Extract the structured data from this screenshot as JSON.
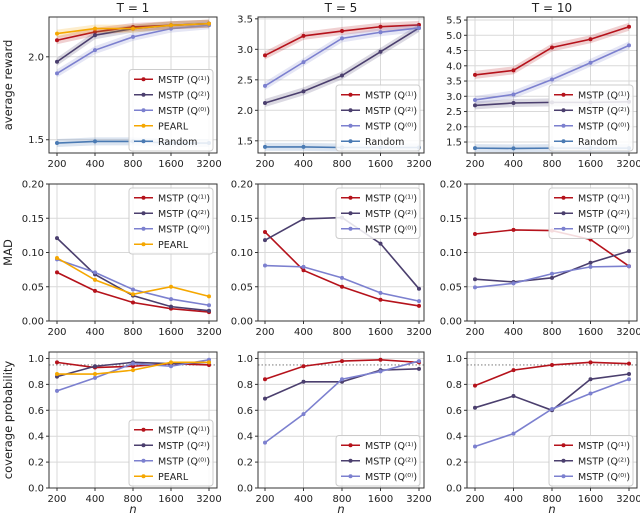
{
  "chart_data": [
    {
      "type": "line",
      "title": "T = 1",
      "ylabel": "average reward",
      "xlabel": "",
      "categories": [
        "200",
        "400",
        "800",
        "1600",
        "3200"
      ],
      "ylim": [
        1.42,
        2.24
      ],
      "yticks": [
        1.5,
        2.0
      ],
      "ytick_labels": [
        "1.5",
        "2.0"
      ],
      "grid": true,
      "legend": "lower right",
      "confidence_band": true,
      "series": [
        {
          "name": "MSTP (Q⁽¹⁾)",
          "color": "#b5121b",
          "values": [
            2.1,
            2.15,
            2.18,
            2.19,
            2.2
          ]
        },
        {
          "name": "MSTP (Q⁽²⁾)",
          "color": "#4b3f6e",
          "values": [
            1.97,
            2.13,
            2.17,
            2.19,
            2.2
          ]
        },
        {
          "name": "MSTP (Q⁽⁰⁾)",
          "color": "#7c80cf",
          "values": [
            1.9,
            2.04,
            2.12,
            2.17,
            2.19
          ]
        },
        {
          "name": "PEARL",
          "color": "#f5a700",
          "values": [
            2.14,
            2.17,
            2.17,
            2.19,
            2.2
          ]
        },
        {
          "name": "Random",
          "color": "#4a7ab3",
          "values": [
            1.48,
            1.49,
            1.49,
            1.48,
            1.48
          ]
        }
      ]
    },
    {
      "type": "line",
      "title": "T = 5",
      "ylabel": "",
      "xlabel": "",
      "categories": [
        "200",
        "400",
        "800",
        "1600",
        "3200"
      ],
      "ylim": [
        1.3,
        3.53
      ],
      "yticks": [
        1.5,
        2.0,
        2.5,
        3.0,
        3.5
      ],
      "ytick_labels": [
        "1.5",
        "2.0",
        "2.5",
        "3.0",
        "3.5"
      ],
      "grid": true,
      "legend": "lower right",
      "confidence_band": true,
      "series": [
        {
          "name": "MSTP (Q⁽¹⁾)",
          "color": "#b5121b",
          "values": [
            2.9,
            3.22,
            3.3,
            3.37,
            3.4
          ]
        },
        {
          "name": "MSTP (Q⁽²⁾)",
          "color": "#4b3f6e",
          "values": [
            2.12,
            2.31,
            2.57,
            2.96,
            3.35
          ]
        },
        {
          "name": "MSTP (Q⁽⁰⁾)",
          "color": "#7c80cf",
          "values": [
            2.4,
            2.79,
            3.18,
            3.28,
            3.35
          ]
        },
        {
          "name": "Random",
          "color": "#4a7ab3",
          "values": [
            1.4,
            1.4,
            1.39,
            1.39,
            1.39
          ]
        }
      ]
    },
    {
      "type": "line",
      "title": "T = 10",
      "ylabel": "",
      "xlabel": "",
      "categories": [
        "200",
        "400",
        "800",
        "1600",
        "3200"
      ],
      "ylim": [
        1.14,
        5.6
      ],
      "yticks": [
        1.5,
        2.0,
        2.5,
        3.0,
        3.5,
        4.0,
        4.5,
        5.0,
        5.5
      ],
      "ytick_labels": [
        "1.5",
        "2.0",
        "2.5",
        "3.0",
        "3.5",
        "4.0",
        "4.5",
        "5.0",
        "5.5"
      ],
      "grid": true,
      "legend": "lower right",
      "confidence_band": true,
      "series": [
        {
          "name": "MSTP (Q⁽¹⁾)",
          "color": "#b5121b",
          "values": [
            3.7,
            3.85,
            4.6,
            4.87,
            5.28
          ]
        },
        {
          "name": "MSTP (Q⁽²⁾)",
          "color": "#4b3f6e",
          "values": [
            2.7,
            2.78,
            2.8,
            2.8,
            2.82
          ]
        },
        {
          "name": "MSTP (Q⁽⁰⁾)",
          "color": "#7c80cf",
          "values": [
            2.88,
            3.06,
            3.55,
            4.1,
            4.67
          ]
        },
        {
          "name": "Random",
          "color": "#4a7ab3",
          "values": [
            1.3,
            1.29,
            1.3,
            1.3,
            1.3
          ]
        }
      ]
    },
    {
      "type": "line",
      "title": "",
      "ylabel": "MAD",
      "xlabel": "",
      "categories": [
        "200",
        "400",
        "800",
        "1600",
        "3200"
      ],
      "ylim": [
        0,
        0.2
      ],
      "yticks": [
        0,
        0.05,
        0.1,
        0.15,
        0.2
      ],
      "ytick_labels": [
        "0.00",
        "0.05",
        "0.10",
        "0.15",
        "0.20"
      ],
      "grid": true,
      "legend": "upper right",
      "series": [
        {
          "name": "MSTP (Q⁽¹⁾)",
          "color": "#b5121b",
          "values": [
            0.071,
            0.044,
            0.027,
            0.018,
            0.013
          ]
        },
        {
          "name": "MSTP (Q⁽²⁾)",
          "color": "#4b3f6e",
          "values": [
            0.121,
            0.068,
            0.037,
            0.021,
            0.015
          ]
        },
        {
          "name": "MSTP (Q⁽⁰⁾)",
          "color": "#7c80cf",
          "values": [
            0.09,
            0.071,
            0.046,
            0.032,
            0.023
          ]
        },
        {
          "name": "PEARL",
          "color": "#f5a700",
          "values": [
            0.092,
            0.06,
            0.039,
            0.05,
            0.036
          ]
        }
      ]
    },
    {
      "type": "line",
      "title": "",
      "ylabel": "",
      "xlabel": "",
      "categories": [
        "200",
        "400",
        "800",
        "1600",
        "3200"
      ],
      "ylim": [
        0,
        0.2
      ],
      "yticks": [
        0,
        0.05,
        0.1,
        0.15,
        0.2
      ],
      "ytick_labels": [
        "0.00",
        "0.05",
        "0.10",
        "0.15",
        "0.20"
      ],
      "grid": true,
      "legend": "upper right",
      "series": [
        {
          "name": "MSTP (Q⁽¹⁾)",
          "color": "#b5121b",
          "values": [
            0.13,
            0.074,
            0.05,
            0.031,
            0.022
          ]
        },
        {
          "name": "MSTP (Q⁽²⁾)",
          "color": "#4b3f6e",
          "values": [
            0.118,
            0.149,
            0.151,
            0.113,
            0.047
          ]
        },
        {
          "name": "MSTP (Q⁽⁰⁾)",
          "color": "#7c80cf",
          "values": [
            0.081,
            0.079,
            0.063,
            0.041,
            0.029
          ]
        }
      ]
    },
    {
      "type": "line",
      "title": "",
      "ylabel": "",
      "xlabel": "",
      "categories": [
        "200",
        "400",
        "800",
        "1600",
        "3200"
      ],
      "ylim": [
        0,
        0.2
      ],
      "yticks": [
        0,
        0.05,
        0.1,
        0.15,
        0.2
      ],
      "ytick_labels": [
        "0.00",
        "0.05",
        "0.10",
        "0.15",
        "0.20"
      ],
      "grid": true,
      "legend": "upper right",
      "series": [
        {
          "name": "MSTP (Q⁽¹⁾)",
          "color": "#b5121b",
          "values": [
            0.127,
            0.133,
            0.132,
            0.119,
            0.08
          ]
        },
        {
          "name": "MSTP (Q⁽²⁾)",
          "color": "#4b3f6e",
          "values": [
            0.061,
            0.057,
            0.063,
            0.085,
            0.102
          ]
        },
        {
          "name": "MSTP (Q⁽⁰⁾)",
          "color": "#7c80cf",
          "values": [
            0.049,
            0.055,
            0.069,
            0.079,
            0.08
          ]
        }
      ]
    },
    {
      "type": "line",
      "title": "",
      "ylabel": "coverage probability",
      "xlabel": "n",
      "categories": [
        "200",
        "400",
        "800",
        "1600",
        "3200"
      ],
      "ylim": [
        0,
        1.05
      ],
      "yticks": [
        0,
        0.2,
        0.4,
        0.6,
        0.8,
        1.0
      ],
      "ytick_labels": [
        "0.0",
        "0.2",
        "0.4",
        "0.6",
        "0.8",
        "1.0"
      ],
      "grid": true,
      "legend": "lower right",
      "reference_line": 0.95,
      "series": [
        {
          "name": "MSTP (Q⁽¹⁾)",
          "color": "#b5121b",
          "values": [
            0.97,
            0.93,
            0.94,
            0.96,
            0.95
          ]
        },
        {
          "name": "MSTP (Q⁽²⁾)",
          "color": "#4b3f6e",
          "values": [
            0.86,
            0.94,
            0.97,
            0.96,
            0.97
          ]
        },
        {
          "name": "MSTP (Q⁽⁰⁾)",
          "color": "#7c80cf",
          "values": [
            0.75,
            0.85,
            0.96,
            0.94,
            0.99
          ]
        },
        {
          "name": "PEARL",
          "color": "#f5a700",
          "values": [
            0.88,
            0.88,
            0.91,
            0.97,
            0.97
          ]
        }
      ]
    },
    {
      "type": "line",
      "title": "",
      "ylabel": "",
      "xlabel": "n",
      "categories": [
        "200",
        "400",
        "800",
        "1600",
        "3200"
      ],
      "ylim": [
        0,
        1.05
      ],
      "yticks": [
        0,
        0.2,
        0.4,
        0.6,
        0.8,
        1.0
      ],
      "ytick_labels": [
        "0.0",
        "0.2",
        "0.4",
        "0.6",
        "0.8",
        "1.0"
      ],
      "grid": true,
      "legend": "lower right",
      "reference_line": 0.95,
      "series": [
        {
          "name": "MSTP (Q⁽¹⁾)",
          "color": "#b5121b",
          "values": [
            0.84,
            0.94,
            0.98,
            0.99,
            0.97
          ]
        },
        {
          "name": "MSTP (Q⁽²⁾)",
          "color": "#4b3f6e",
          "values": [
            0.69,
            0.82,
            0.82,
            0.91,
            0.92
          ]
        },
        {
          "name": "MSTP (Q⁽⁰⁾)",
          "color": "#7c80cf",
          "values": [
            0.35,
            0.57,
            0.84,
            0.9,
            0.98
          ]
        }
      ]
    },
    {
      "type": "line",
      "title": "",
      "ylabel": "",
      "xlabel": "n",
      "categories": [
        "200",
        "400",
        "800",
        "1600",
        "3200"
      ],
      "ylim": [
        0,
        1.05
      ],
      "yticks": [
        0,
        0.2,
        0.4,
        0.6,
        0.8,
        1.0
      ],
      "ytick_labels": [
        "0.0",
        "0.2",
        "0.4",
        "0.6",
        "0.8",
        "1.0"
      ],
      "grid": true,
      "legend": "lower right",
      "reference_line": 0.95,
      "series": [
        {
          "name": "MSTP (Q⁽¹⁾)",
          "color": "#b5121b",
          "values": [
            0.79,
            0.91,
            0.95,
            0.97,
            0.96
          ]
        },
        {
          "name": "MSTP (Q⁽²⁾)",
          "color": "#4b3f6e",
          "values": [
            0.62,
            0.71,
            0.6,
            0.84,
            0.88
          ]
        },
        {
          "name": "MSTP (Q⁽⁰⁾)",
          "color": "#7c80cf",
          "values": [
            0.32,
            0.42,
            0.61,
            0.73,
            0.84
          ]
        }
      ]
    }
  ]
}
